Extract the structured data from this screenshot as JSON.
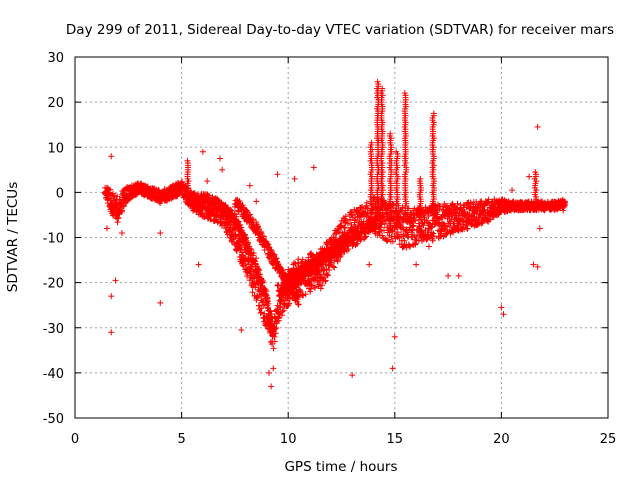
{
  "chart_data": {
    "type": "scatter",
    "title": "Day 299 of 2011, Sidereal Day-to-day VTEC variation (SDTVAR) for receiver mars",
    "xlabel": "GPS time / hours",
    "ylabel": "SDTVAR / TECUs",
    "xlim": [
      0,
      25
    ],
    "ylim": [
      -50,
      30
    ],
    "xticks": [
      "0",
      "5",
      "10",
      "15",
      "20",
      "25"
    ],
    "yticks": [
      "30",
      "20",
      "10",
      "0",
      "-10",
      "-20",
      "-30",
      "-40",
      "-50"
    ],
    "grid": true,
    "marker": "+",
    "color": "#ff0000",
    "series": [
      {
        "name": "mars",
        "trend": {
          "x": [
            1.4,
            1.7,
            2.0,
            2.3,
            2.6,
            3.0,
            3.5,
            4.0,
            4.5,
            5.0,
            5.5,
            6.0,
            6.5,
            7.0,
            7.5,
            8.0,
            8.5,
            9.0,
            9.3,
            9.6,
            10.0,
            10.5,
            11.0,
            11.5,
            12.0,
            12.5,
            13.0,
            13.5,
            14.0,
            14.5,
            15.0,
            15.5,
            16.0,
            16.5,
            17.0,
            17.5,
            18.0,
            18.5,
            19.0,
            19.5,
            20.0,
            20.5,
            21.0,
            21.5,
            22.0,
            22.5,
            23.0
          ],
          "y": [
            0.5,
            -2,
            -4,
            -1,
            0,
            1,
            0,
            -1,
            0,
            1,
            -2,
            -3,
            -4,
            -5,
            -9,
            -14,
            -20,
            -26,
            -32,
            -24,
            -21,
            -19,
            -18,
            -17,
            -14,
            -10,
            -8,
            -7,
            -5,
            -6,
            -7,
            -8,
            -7.5,
            -7,
            -6.5,
            -6,
            -5.5,
            -5,
            -4.5,
            -4,
            -3,
            -3,
            -3,
            -3,
            -3,
            -3,
            -2.5
          ],
          "spread": [
            1.2,
            2.5,
            3,
            2,
            1.5,
            1.2,
            1.2,
            1.5,
            1.5,
            1.5,
            2,
            2.5,
            2.5,
            3,
            3.5,
            4,
            4.5,
            4.5,
            3,
            4,
            4,
            4.5,
            4.5,
            4.5,
            4,
            4,
            4,
            4,
            4,
            4.5,
            4.5,
            4.5,
            4,
            4,
            4,
            3.5,
            3,
            3,
            2.5,
            2.5,
            1.5,
            1,
            1,
            1,
            1,
            1,
            1
          ]
        },
        "loops": [
          {
            "x": [
              5.2,
              6.5,
              7.5,
              8.5,
              9.0,
              9.3
            ],
            "y": [
              -1,
              -2,
              -6,
              -16,
              -24,
              -33
            ]
          },
          {
            "x": [
              7.5,
              8.5,
              9.2,
              10.0,
              10.5
            ],
            "y": [
              -2,
              -8,
              -14,
              -20,
              -24
            ]
          },
          {
            "x": [
              9.5,
              10.5,
              11.5,
              12.5,
              13.5,
              14.5
            ],
            "y": [
              -22,
              -19,
              -15,
              -11,
              -8,
              -6
            ]
          },
          {
            "x": [
              9.8,
              10.8,
              11.8,
              12.8
            ],
            "y": [
              -20,
              -17,
              -14,
              -11
            ]
          }
        ],
        "spikes": [
          {
            "x": 14.2,
            "y_from": -5,
            "y_to": 24.5
          },
          {
            "x": 14.4,
            "y_from": -4,
            "y_to": 23
          },
          {
            "x": 15.5,
            "y_from": -5,
            "y_to": 22
          },
          {
            "x": 16.8,
            "y_from": -5,
            "y_to": 17.5
          },
          {
            "x": 13.9,
            "y_from": -8,
            "y_to": 11
          },
          {
            "x": 14.8,
            "y_from": -8,
            "y_to": 13
          },
          {
            "x": 15.1,
            "y_from": -6,
            "y_to": 9
          },
          {
            "x": 16.2,
            "y_from": -6,
            "y_to": 3
          },
          {
            "x": 21.6,
            "y_from": -3,
            "y_to": 4.5
          },
          {
            "x": 5.3,
            "y_from": -1,
            "y_to": 7
          }
        ],
        "outliers": [
          {
            "x": 1.5,
            "y": -8
          },
          {
            "x": 1.7,
            "y": -23
          },
          {
            "x": 1.7,
            "y": -31
          },
          {
            "x": 1.9,
            "y": -19.5
          },
          {
            "x": 1.7,
            "y": 8
          },
          {
            "x": 4.0,
            "y": -24.5
          },
          {
            "x": 4.0,
            "y": -9
          },
          {
            "x": 6.0,
            "y": 9
          },
          {
            "x": 6.8,
            "y": 7.5
          },
          {
            "x": 6.9,
            "y": 5
          },
          {
            "x": 7.8,
            "y": -30.5
          },
          {
            "x": 8.2,
            "y": 1.5
          },
          {
            "x": 9.1,
            "y": -40
          },
          {
            "x": 9.2,
            "y": -43
          },
          {
            "x": 9.3,
            "y": -39
          },
          {
            "x": 8.0,
            "y": -13
          },
          {
            "x": 8.5,
            "y": -2
          },
          {
            "x": 9.5,
            "y": 4
          },
          {
            "x": 10.3,
            "y": 3
          },
          {
            "x": 11.2,
            "y": 5.5
          },
          {
            "x": 13.0,
            "y": -40.5
          },
          {
            "x": 15.0,
            "y": -32
          },
          {
            "x": 14.9,
            "y": -39
          },
          {
            "x": 13.8,
            "y": -16
          },
          {
            "x": 16.0,
            "y": -16
          },
          {
            "x": 16.6,
            "y": -12
          },
          {
            "x": 17.5,
            "y": -18.5
          },
          {
            "x": 18.0,
            "y": -18.5
          },
          {
            "x": 20.0,
            "y": -25.5
          },
          {
            "x": 20.1,
            "y": -27
          },
          {
            "x": 21.5,
            "y": -16
          },
          {
            "x": 21.7,
            "y": -16.5
          },
          {
            "x": 21.8,
            "y": -8
          },
          {
            "x": 21.7,
            "y": 14.5
          },
          {
            "x": 20.5,
            "y": 0.5
          },
          {
            "x": 21.3,
            "y": 3.5
          },
          {
            "x": 22.9,
            "y": -4
          },
          {
            "x": 6.2,
            "y": 2.5
          },
          {
            "x": 5.8,
            "y": -16
          },
          {
            "x": 2.2,
            "y": -9
          }
        ]
      }
    ]
  }
}
